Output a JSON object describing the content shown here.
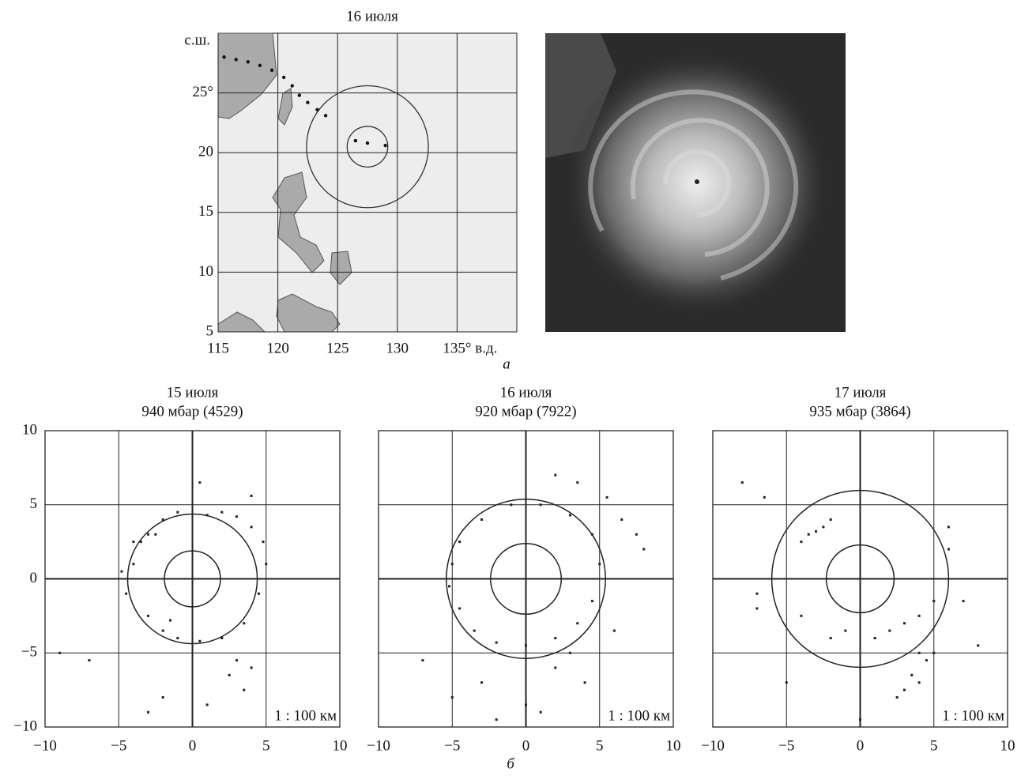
{
  "chart_data": [
    {
      "type": "map",
      "title": "16 июля",
      "ylabel": "с.ш.",
      "xlim": [
        115,
        140
      ],
      "ylim": [
        5,
        30
      ],
      "xticks": [
        115,
        120,
        125,
        130,
        {
          "value": 135,
          "label": "135° в.д."
        }
      ],
      "yticks": [
        5,
        10,
        15,
        {
          "value": 20,
          "label": "20"
        },
        {
          "value": 25,
          "label": "25°"
        }
      ],
      "center_lon": 127.5,
      "center_lat": 20.5,
      "rings": [
        1.7,
        5.1
      ],
      "track_lon": [
        115.5,
        116.5,
        117.5,
        118.5,
        119.5,
        120.5,
        121.2,
        121.8,
        122.5,
        123.3,
        124,
        126.5,
        127.5,
        129
      ],
      "track_lat": [
        28,
        27.8,
        27.6,
        27.3,
        26.9,
        26.3,
        25.6,
        24.8,
        24.2,
        23.6,
        23.1,
        21,
        20.8,
        20.6
      ]
    },
    {
      "type": "scatter",
      "title": "15 июля",
      "subtitle": "940 мбар (4529)",
      "annotation": "1 : 100 км",
      "xlim": [
        -10,
        10
      ],
      "ylim": [
        -10,
        10
      ],
      "xticks": [
        {
          "value": -10,
          "label": "−10"
        },
        {
          "value": -5,
          "label": "−5"
        },
        0,
        5,
        10
      ],
      "yticks": [
        {
          "value": -10,
          "label": "−10"
        },
        {
          "value": -5,
          "label": "−5"
        },
        0,
        5,
        10
      ],
      "rings": [
        1.9,
        4.4
      ],
      "x": [
        -3.5,
        -4,
        -4.5,
        -3,
        -2,
        -1,
        0.5,
        2,
        3.5,
        4.5,
        5,
        4.8,
        4,
        3,
        2,
        1,
        -1,
        -2,
        -3,
        -4,
        -4.8,
        -2.5,
        -1.5,
        3,
        4,
        2.5,
        3.5,
        1,
        -2,
        -7,
        -9,
        4,
        -3,
        0.5
      ],
      "y": [
        2.5,
        1,
        -1,
        -2.5,
        -3.5,
        -4,
        -4.2,
        -4,
        -3,
        -1,
        1,
        2.5,
        3.5,
        4.2,
        4.5,
        4.3,
        4.5,
        4,
        3,
        2.5,
        0.5,
        3,
        -2.8,
        -5.5,
        -6,
        -6.5,
        -7.5,
        -8.5,
        -8,
        -5.5,
        -5,
        5.6,
        -9,
        6.5
      ]
    },
    {
      "type": "scatter",
      "title": "16 июля",
      "subtitle": "920 мбар (7922)",
      "annotation": "1 : 100 км",
      "xlim": [
        -10,
        10
      ],
      "ylim": [
        -10,
        10
      ],
      "xticks": [
        {
          "value": -10,
          "label": "−10"
        },
        {
          "value": -5,
          "label": "−5"
        },
        0,
        5,
        10
      ],
      "yticks": [
        -10,
        -5,
        0,
        5,
        10
      ],
      "rings": [
        2.4,
        5.4
      ],
      "x": [
        -5,
        -4.5,
        -3.5,
        -2,
        0,
        2,
        3.5,
        4.5,
        5,
        4.5,
        3,
        1,
        -1,
        -3,
        -4.5,
        -5.2,
        6.5,
        7.5,
        8,
        6,
        3,
        2,
        4,
        -3,
        -5,
        -7,
        2,
        0,
        -2,
        1,
        3.5,
        5.5
      ],
      "y": [
        1,
        -2,
        -3.5,
        -4.3,
        -4.5,
        -4,
        -3,
        -1.5,
        1,
        3,
        4.3,
        5,
        5,
        4,
        2.5,
        -0.5,
        4,
        3,
        2,
        -3.5,
        -5,
        -6,
        -7,
        -7,
        -8,
        -5.5,
        7,
        -8.5,
        -9.5,
        -9,
        6.5,
        5.5
      ]
    },
    {
      "type": "scatter",
      "title": "17 июля",
      "subtitle": "935 мбар (3864)",
      "annotation": "1 : 100 км",
      "xlim": [
        -10,
        10
      ],
      "ylim": [
        -10,
        10
      ],
      "xticks": [
        {
          "value": -10,
          "label": "−10"
        },
        {
          "value": -5,
          "label": "−5"
        },
        0,
        5,
        10
      ],
      "yticks": [
        -10,
        -5,
        0,
        5,
        10
      ],
      "rings": [
        2.3,
        6.0
      ],
      "x": [
        -4,
        -3.5,
        -3,
        -2.5,
        -2,
        -7,
        -7,
        -8,
        -6.5,
        2,
        3,
        4,
        5,
        1,
        -1,
        -2,
        4,
        4.5,
        5,
        3.5,
        3,
        2.5,
        4,
        6,
        6,
        7,
        8,
        5.5,
        -5,
        -4,
        0
      ],
      "y": [
        2.5,
        3,
        3.2,
        3.5,
        4,
        -1,
        -2,
        6.5,
        5.5,
        -3.5,
        -3,
        -2.5,
        -1.5,
        -4,
        -3.5,
        -4,
        -5,
        -5.5,
        -5,
        -6.5,
        -7.5,
        -8,
        -7,
        3.5,
        2,
        -1.5,
        -4.5,
        -9,
        -7,
        -2.5,
        -9.5
      ]
    }
  ],
  "captions": {
    "top": "а",
    "bottom": "б"
  }
}
